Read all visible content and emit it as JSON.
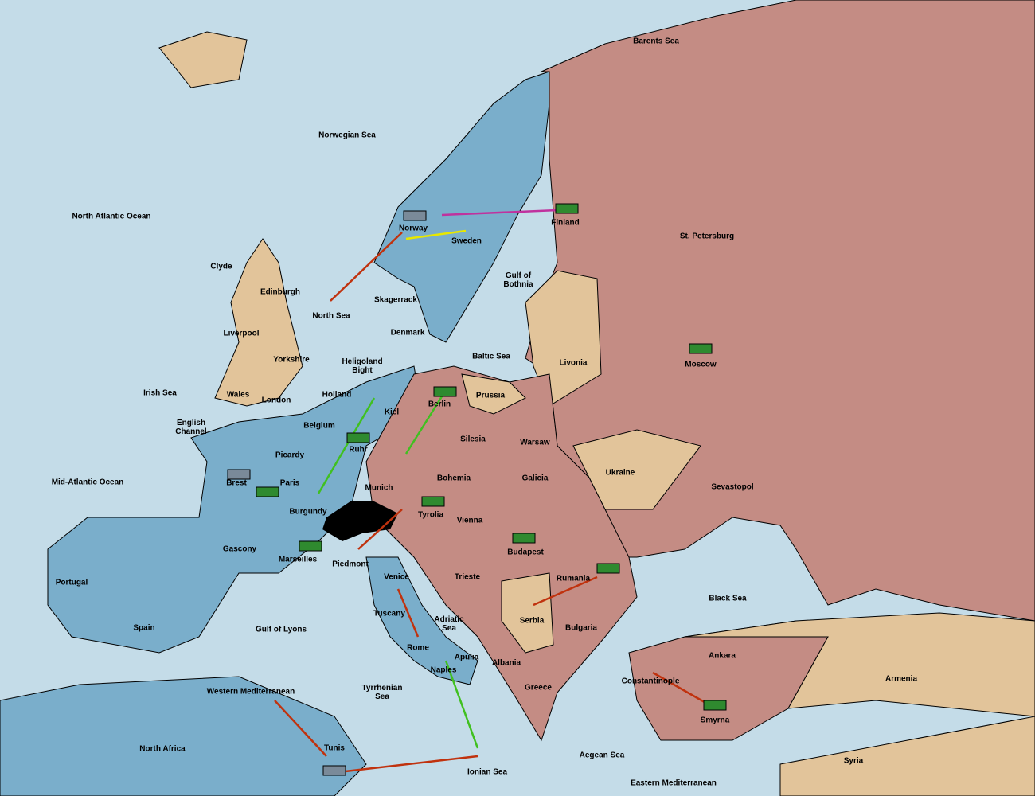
{
  "regions": [
    {
      "name": "Barents Sea"
    },
    {
      "name": "Norwegian Sea"
    },
    {
      "name": "North Atlantic Ocean"
    },
    {
      "name": "Finland"
    },
    {
      "name": "St. Petersburg"
    },
    {
      "name": "Norway"
    },
    {
      "name": "Sweden"
    },
    {
      "name": "Clyde"
    },
    {
      "lines": [
        "Gulf of",
        "Bothnia"
      ]
    },
    {
      "name": "Edinburgh"
    },
    {
      "name": "Skagerrack"
    },
    {
      "name": "North Sea"
    },
    {
      "name": "Liverpool"
    },
    {
      "name": "Denmark"
    },
    {
      "name": "Baltic Sea"
    },
    {
      "name": "Livonia"
    },
    {
      "name": "Moscow"
    },
    {
      "name": "Yorkshire"
    },
    {
      "lines": [
        "Heligoland",
        "Bight"
      ]
    },
    {
      "name": "Irish Sea"
    },
    {
      "name": "Holland"
    },
    {
      "name": "Prussia"
    },
    {
      "name": "Wales"
    },
    {
      "name": "London"
    },
    {
      "name": "Berlin"
    },
    {
      "name": "Kiel"
    },
    {
      "lines": [
        "English",
        "Channel"
      ]
    },
    {
      "name": "Belgium"
    },
    {
      "name": "Silesia"
    },
    {
      "name": "Warsaw"
    },
    {
      "name": "Ruhr"
    },
    {
      "name": "Picardy"
    },
    {
      "name": "Ukraine"
    },
    {
      "name": "Bohemia"
    },
    {
      "name": "Galicia"
    },
    {
      "name": "Brest"
    },
    {
      "name": "Paris"
    },
    {
      "name": "Mid-Atlantic Ocean"
    },
    {
      "name": "Munich"
    },
    {
      "name": "Sevastopol"
    },
    {
      "name": "Burgundy"
    },
    {
      "name": "Tyrolia"
    },
    {
      "name": "Vienna"
    },
    {
      "name": "Budapest"
    },
    {
      "name": "Gascony"
    },
    {
      "name": "Portugal"
    },
    {
      "name": "Marseilles"
    },
    {
      "name": "Piedmont"
    },
    {
      "name": "Venice"
    },
    {
      "name": "Trieste"
    },
    {
      "name": "Rumania"
    },
    {
      "name": "Black Sea"
    },
    {
      "name": "Spain"
    },
    {
      "name": "Tuscany"
    },
    {
      "lines": [
        "Adriatic",
        "Sea"
      ]
    },
    {
      "name": "Serbia"
    },
    {
      "name": "Bulgaria"
    },
    {
      "name": "Gulf of Lyons"
    },
    {
      "name": "Rome"
    },
    {
      "name": "Apulia"
    },
    {
      "name": "Ankara"
    },
    {
      "name": "Albania"
    },
    {
      "name": "Naples"
    },
    {
      "name": "Armenia"
    },
    {
      "name": "Constantinople"
    },
    {
      "lines": [
        "Tyrrhenian",
        "Sea"
      ]
    },
    {
      "name": "Western Mediterranean"
    },
    {
      "name": "Greece"
    },
    {
      "name": "Smyrna"
    },
    {
      "name": "North Africa"
    },
    {
      "name": "Tunis"
    },
    {
      "name": "Aegean Sea"
    },
    {
      "name": "Syria"
    },
    {
      "name": "Ionian Sea"
    },
    {
      "name": "Eastern Mediterranean"
    }
  ]
}
